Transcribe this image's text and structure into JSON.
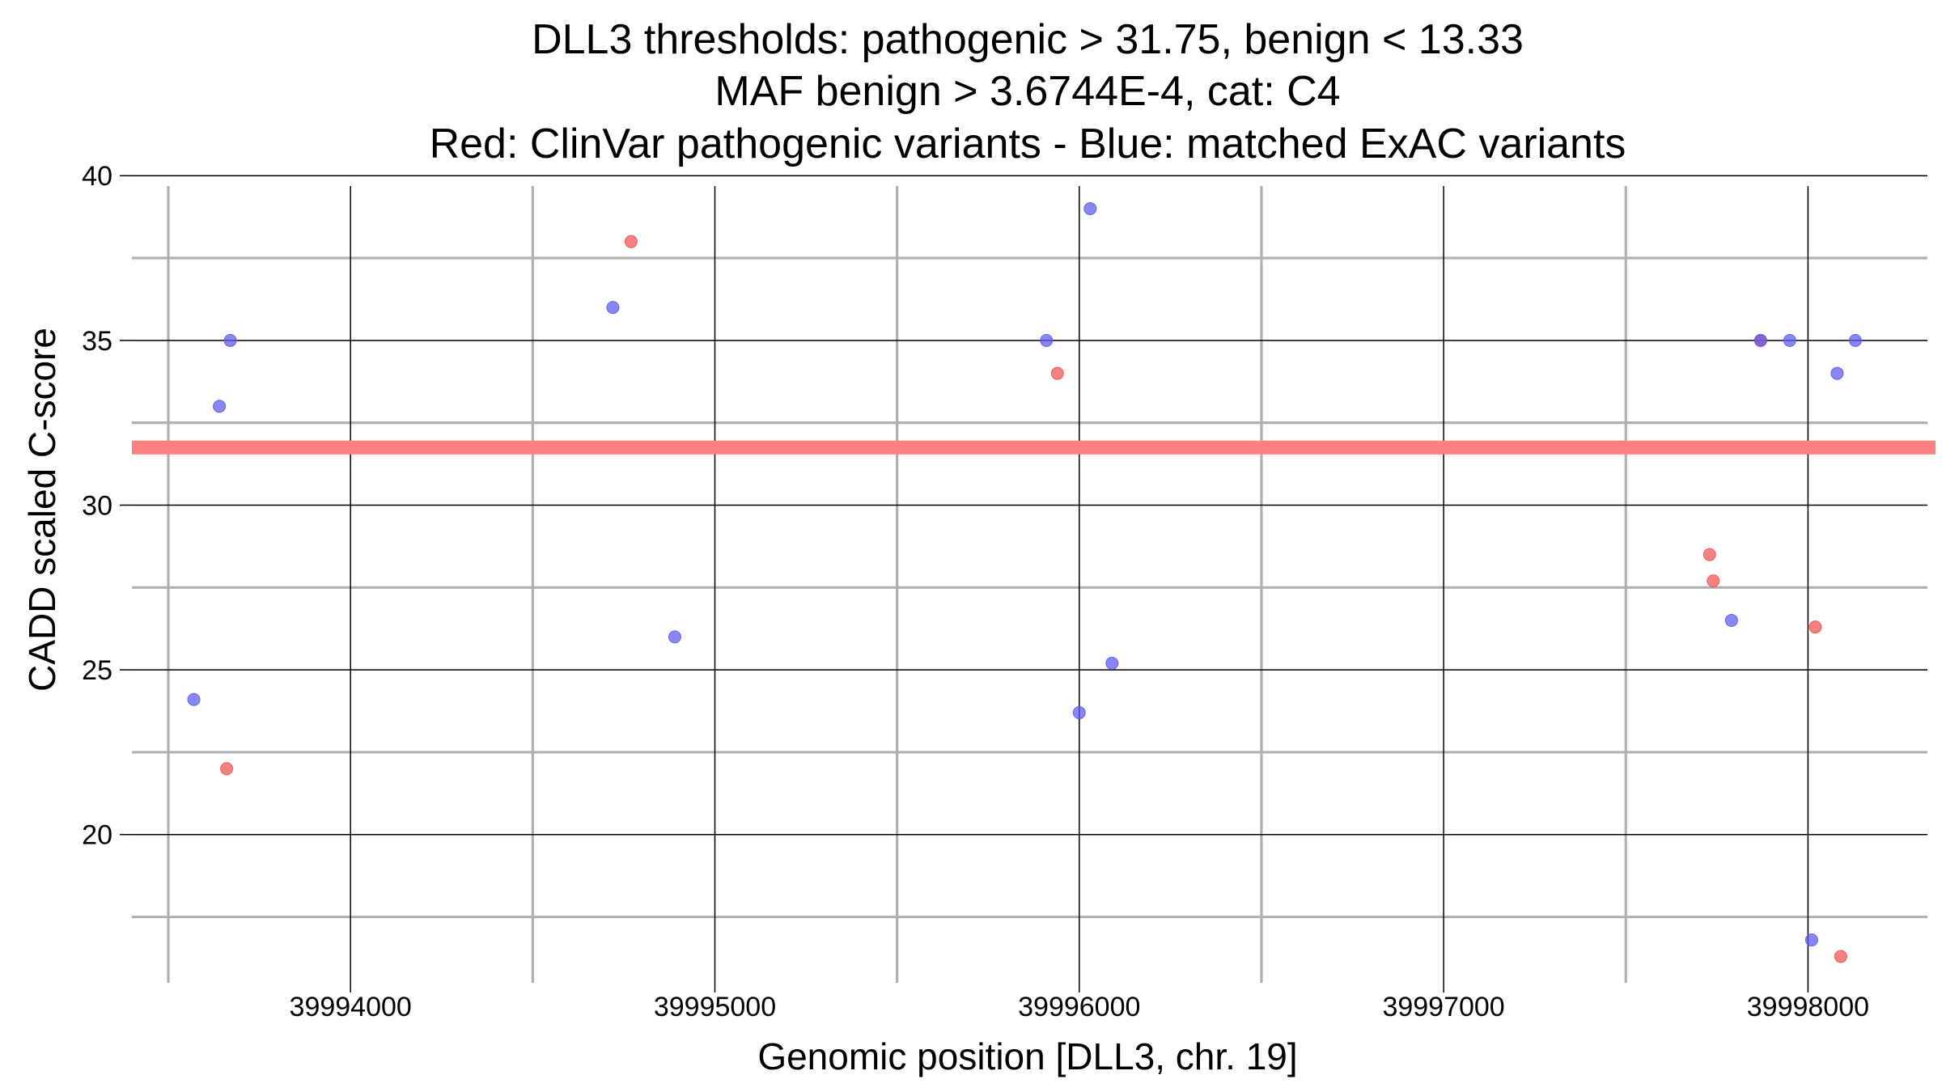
{
  "chart_data": {
    "type": "scatter",
    "title": [
      "DLL3 thresholds: pathogenic > 31.75, benign < 13.33",
      "MAF benign > 3.6744E-4, cat: C4",
      "Red: ClinVar pathogenic variants - Blue: matched ExAC variants"
    ],
    "xlabel": "Genomic position [DLL3, chr. 19]",
    "ylabel": "CADD scaled C-score",
    "xlim": [
      39993400,
      39998350
    ],
    "ylim": [
      15.5,
      40.3
    ],
    "xticks": [
      39994000,
      39995000,
      39996000,
      39997000,
      39998000
    ],
    "xtick_labels": [
      "39994000",
      "39995000",
      "39996000",
      "39997000",
      "39998000"
    ],
    "xminor": [
      39993500,
      39994500,
      39995500,
      39996500,
      39997500
    ],
    "yticks": [
      20,
      25,
      30,
      35,
      40
    ],
    "ytick_labels": [
      "20",
      "25",
      "30",
      "35",
      "40"
    ],
    "yminor": [
      17.5,
      22.5,
      27.5,
      32.5,
      37.5
    ],
    "grid": true,
    "threshold": {
      "label": "pathogenic threshold",
      "value": 31.75,
      "color": "#ff8080"
    },
    "colors": {
      "pathogenic": "#f05050",
      "exac": "#5a5af0",
      "major_grid": "#000000",
      "minor_grid": "#b0b0b0"
    },
    "series": [
      {
        "name": "ClinVar pathogenic variants",
        "color": "#f05050",
        "points": [
          {
            "x": 39993660,
            "y": 22.0
          },
          {
            "x": 39994770,
            "y": 38.0
          },
          {
            "x": 39995940,
            "y": 34.0
          },
          {
            "x": 39997730,
            "y": 28.5
          },
          {
            "x": 39997740,
            "y": 27.7
          },
          {
            "x": 39997870,
            "y": 35.0
          },
          {
            "x": 39998020,
            "y": 26.3
          },
          {
            "x": 39998090,
            "y": 16.3
          }
        ]
      },
      {
        "name": "matched ExAC variants",
        "color": "#5a5af0",
        "points": [
          {
            "x": 39993570,
            "y": 24.1
          },
          {
            "x": 39993640,
            "y": 33.0
          },
          {
            "x": 39993670,
            "y": 35.0
          },
          {
            "x": 39994720,
            "y": 36.0
          },
          {
            "x": 39994890,
            "y": 26.0
          },
          {
            "x": 39995910,
            "y": 35.0
          },
          {
            "x": 39996000,
            "y": 23.7
          },
          {
            "x": 39996030,
            "y": 39.0
          },
          {
            "x": 39996090,
            "y": 25.2
          },
          {
            "x": 39997790,
            "y": 26.5
          },
          {
            "x": 39997870,
            "y": 35.0
          },
          {
            "x": 39997950,
            "y": 35.0
          },
          {
            "x": 39998010,
            "y": 16.8
          },
          {
            "x": 39998080,
            "y": 34.0
          },
          {
            "x": 39998130,
            "y": 35.0
          }
        ]
      }
    ]
  }
}
